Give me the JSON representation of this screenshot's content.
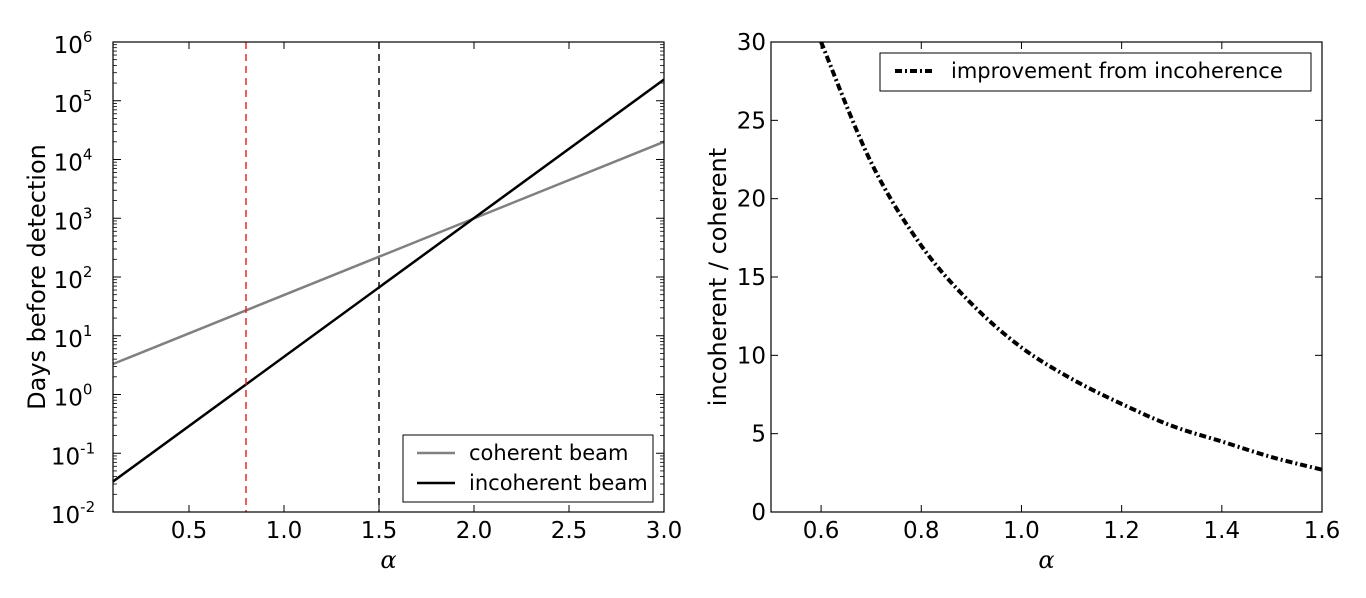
{
  "chart_data": [
    {
      "type": "line",
      "xlabel": "α",
      "ylabel": "Days before detection",
      "xlim": [
        0.1,
        3.0
      ],
      "ylim": [
        0.01,
        1000000
      ],
      "y_scale": "log",
      "xticks": [
        "0.5",
        "1.0",
        "1.5",
        "2.0",
        "2.5",
        "3.0"
      ],
      "yticks": [
        {
          "base": "10",
          "exp": "-2"
        },
        {
          "base": "10",
          "exp": "-1"
        },
        {
          "base": "10",
          "exp": "0"
        },
        {
          "base": "10",
          "exp": "1"
        },
        {
          "base": "10",
          "exp": "2"
        },
        {
          "base": "10",
          "exp": "3"
        },
        {
          "base": "10",
          "exp": "4"
        },
        {
          "base": "10",
          "exp": "5"
        },
        {
          "base": "10",
          "exp": "6"
        }
      ],
      "legend_position": "lower-right",
      "series": [
        {
          "name": "coherent beam",
          "color": "#808080",
          "style": "solid",
          "x": [
            0.1,
            3.0
          ],
          "y": [
            3.3,
            20000
          ]
        },
        {
          "name": "incoherent beam",
          "color": "#000000",
          "style": "solid",
          "x": [
            0.1,
            3.0
          ],
          "y": [
            0.033,
            230000
          ]
        }
      ],
      "vlines": [
        {
          "x": 0.8,
          "color": "#e31a1c",
          "style": "dashed"
        },
        {
          "x": 1.5,
          "color": "#000000",
          "style": "dashed"
        }
      ]
    },
    {
      "type": "line",
      "xlabel": "α",
      "ylabel": "incoherent / coherent",
      "xlim": [
        0.5,
        1.6
      ],
      "ylim": [
        0,
        30
      ],
      "xticks": [
        "0.6",
        "0.8",
        "1.0",
        "1.2",
        "1.4",
        "1.6"
      ],
      "yticks": [
        "0",
        "5",
        "10",
        "15",
        "20",
        "25",
        "30"
      ],
      "legend_position": "top-right",
      "series": [
        {
          "name": "improvement from incoherence",
          "color": "#000000",
          "style": "dash-dot",
          "x": [
            0.6,
            0.7,
            0.8,
            0.9,
            1.0,
            1.1,
            1.2,
            1.3,
            1.4,
            1.5,
            1.6
          ],
          "y": [
            30,
            22.3,
            17.0,
            13.3,
            10.5,
            8.5,
            6.9,
            5.5,
            4.5,
            3.5,
            2.7
          ]
        }
      ]
    }
  ]
}
